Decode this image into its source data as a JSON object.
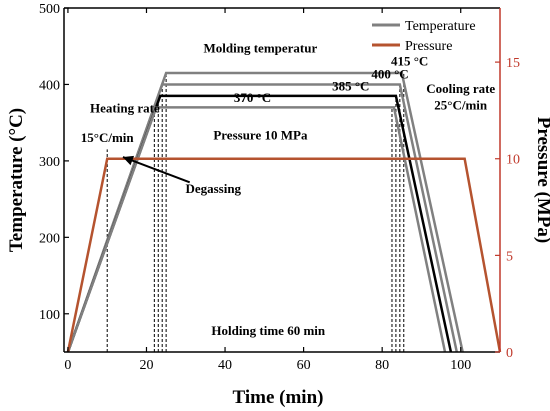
{
  "chart_data": {
    "type": "line",
    "xlabel": "Time (min)",
    "ylabel_left": "Temperature (°C)",
    "ylabel_right": "Pressure (MPa)",
    "xlim": [
      -1,
      110
    ],
    "ylim_left": [
      50,
      500
    ],
    "ylim_right": [
      0,
      17.8
    ],
    "x_ticks": [
      0,
      20,
      40,
      60,
      80,
      100
    ],
    "y_ticks_left": [
      100,
      200,
      300,
      400,
      500
    ],
    "y_ticks_right": [
      0,
      5,
      10,
      15
    ],
    "grid": false,
    "legend_position": "top-right",
    "colors": {
      "temperature": "#808080",
      "pressure": "#b5532f",
      "axis_right": "#c0392b",
      "text": "#000000",
      "dashed": "#000000"
    },
    "legend": [
      {
        "name": "Temperature",
        "color": "#808080"
      },
      {
        "name": "Pressure",
        "color": "#b5532f"
      }
    ],
    "series": [
      {
        "name": "415 °C",
        "axis": "left",
        "color": "#808080",
        "x": [
          0,
          25,
          85,
          100.5
        ],
        "y": [
          50,
          415,
          415,
          50
        ]
      },
      {
        "name": "400 °C",
        "axis": "left",
        "color": "#808080",
        "x": [
          0,
          24,
          84.5,
          99
        ],
        "y": [
          50,
          400,
          400,
          50
        ]
      },
      {
        "name": "385 °C",
        "axis": "left",
        "color": "#000000",
        "x": [
          0,
          23.5,
          83.5,
          97.5
        ],
        "y": [
          50,
          385,
          385,
          50
        ]
      },
      {
        "name": "370 °C",
        "axis": "left",
        "color": "#808080",
        "x": [
          0,
          22.5,
          83,
          96
        ],
        "y": [
          50,
          370,
          370,
          50
        ]
      },
      {
        "name": "Pressure",
        "axis": "right",
        "color": "#b5532f",
        "x": [
          0,
          10,
          10,
          22,
          101,
          110
        ],
        "y": [
          0,
          10,
          10,
          10,
          10,
          0
        ]
      }
    ],
    "dashed_verticals": [
      {
        "x": 10,
        "y_top": 315
      },
      {
        "x": 22,
        "y_top": 370
      },
      {
        "x": 23,
        "y_top": 385
      },
      {
        "x": 24,
        "y_top": 400
      },
      {
        "x": 25,
        "y_top": 415
      },
      {
        "x": 82.5,
        "y_top": 370
      },
      {
        "x": 83.5,
        "y_top": 385
      },
      {
        "x": 84.5,
        "y_top": 400
      },
      {
        "x": 85.5,
        "y_top": 415
      }
    ],
    "annotations": [
      {
        "text": "Molding temperatur",
        "x": 49,
        "y": 442
      },
      {
        "text": "415 °C",
        "x": 87,
        "y": 425
      },
      {
        "text": "400 °C",
        "x": 82,
        "y": 408
      },
      {
        "text": "385 °C",
        "x": 72,
        "y": 392
      },
      {
        "text": "370 °C",
        "x": 47,
        "y": 377
      },
      {
        "text": "Heating rate",
        "x": 14.5,
        "y": 363
      },
      {
        "text": "15°C/min",
        "x": 10,
        "y": 325
      },
      {
        "text": "Pressure 10 MPa",
        "x": 49,
        "y": 328
      },
      {
        "text": "Degassing",
        "x": 37,
        "y": 258
      },
      {
        "text": "Cooling rate",
        "x": 100,
        "y": 389
      },
      {
        "text": "25°C/min",
        "x": 100,
        "y": 367
      },
      {
        "text": "Holding time 60 min",
        "x": 51,
        "y": 72
      }
    ],
    "arrow": {
      "from_x": 31,
      "from_y": 272,
      "to_x": 14,
      "to_y": 305
    }
  }
}
